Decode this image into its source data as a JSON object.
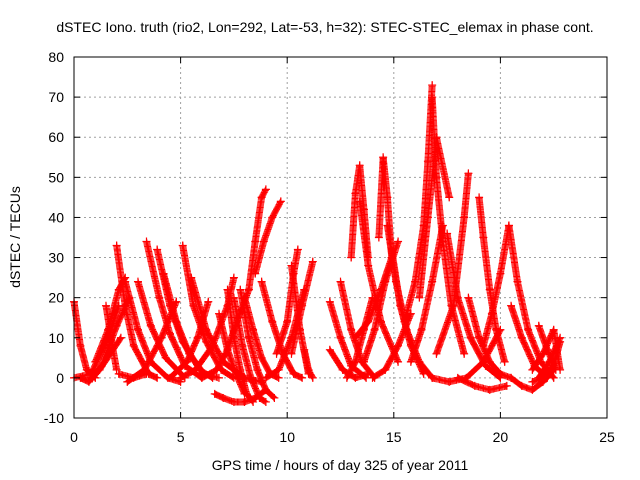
{
  "chart_data": {
    "type": "scatter",
    "title": "dSTEC Iono. truth (rio2, Lon=292, Lat=-53, h=32): STEC-STEC_elemax in phase cont.",
    "xlabel": "GPS time / hours of day 325 of year 2011",
    "ylabel": "dSTEC  / TECUs",
    "xlim": [
      0,
      25
    ],
    "ylim": [
      -10,
      80
    ],
    "x_ticks": [
      0,
      5,
      10,
      15,
      20,
      25
    ],
    "y_ticks": [
      -10,
      0,
      10,
      20,
      30,
      40,
      50,
      60,
      70,
      80
    ],
    "x_tick_labels": [
      "0",
      "5",
      "10",
      "15",
      "20",
      "25"
    ],
    "y_tick_labels": [
      "-10",
      "0",
      "10",
      "20",
      "30",
      "40",
      "50",
      "60",
      "70",
      "80"
    ],
    "grid": true,
    "legend": "none",
    "marker": "plus",
    "color": "#ff0000",
    "series": [
      {
        "x": [
          0.0,
          0.3,
          0.6,
          1.0
        ],
        "y": [
          19,
          8,
          2,
          0
        ]
      },
      {
        "x": [
          0.0,
          0.8,
          1.6,
          2.1
        ],
        "y": [
          0,
          1,
          10,
          18
        ]
      },
      {
        "x": [
          0.3,
          0.7,
          1.2,
          2.2
        ],
        "y": [
          0,
          -1,
          2,
          10
        ]
      },
      {
        "x": [
          0.8,
          1.3,
          2.0,
          2.6
        ],
        "y": [
          0,
          3,
          13,
          20
        ]
      },
      {
        "x": [
          1.0,
          1.6,
          2.1,
          2.4
        ],
        "y": [
          4,
          12,
          22,
          25
        ]
      },
      {
        "x": [
          1.5,
          1.8,
          2.0
        ],
        "y": [
          18,
          8,
          2
        ]
      },
      {
        "x": [
          2.0,
          2.4,
          2.8,
          3.5,
          3.9
        ],
        "y": [
          33,
          18,
          8,
          1,
          0
        ]
      },
      {
        "x": [
          2.4,
          3.0,
          3.6,
          4.4,
          5.0
        ],
        "y": [
          24,
          12,
          4,
          0,
          -1
        ]
      },
      {
        "x": [
          2.1,
          2.8,
          3.4
        ],
        "y": [
          1,
          0,
          1
        ]
      },
      {
        "x": [
          3.0,
          3.6,
          4.3,
          5.2
        ],
        "y": [
          24,
          13,
          5,
          0
        ]
      },
      {
        "x": [
          3.4,
          4.0,
          4.5,
          5.2,
          6.0
        ],
        "y": [
          34,
          20,
          11,
          3,
          0
        ]
      },
      {
        "x": [
          3.9,
          4.5,
          5.1,
          5.9,
          6.5
        ],
        "y": [
          32,
          18,
          9,
          2,
          0
        ]
      },
      {
        "x": [
          2.5,
          3.3,
          4.1,
          4.8
        ],
        "y": [
          -1,
          2,
          10,
          19
        ]
      },
      {
        "x": [
          4.2,
          4.8,
          5.4,
          6.1,
          6.8
        ],
        "y": [
          26,
          14,
          6,
          1,
          0
        ]
      },
      {
        "x": [
          5.1,
          5.6,
          6.2,
          6.9,
          7.5
        ],
        "y": [
          33,
          18,
          9,
          2,
          0
        ]
      },
      {
        "x": [
          5.5,
          6.2,
          7.0,
          8.0,
          8.8
        ],
        "y": [
          25,
          12,
          4,
          0,
          -1
        ]
      },
      {
        "x": [
          4.5,
          5.3,
          5.8,
          6.3
        ],
        "y": [
          0,
          4,
          10,
          19
        ]
      },
      {
        "x": [
          5.0,
          5.7,
          6.5,
          7.2,
          7.5
        ],
        "y": [
          0,
          2,
          8,
          18,
          25
        ]
      },
      {
        "x": [
          6.0,
          6.7,
          7.2,
          7.7,
          8.2
        ],
        "y": [
          0,
          2,
          7,
          15,
          22
        ]
      },
      {
        "x": [
          6.8,
          7.2,
          7.6,
          8.0
        ],
        "y": [
          16,
          7,
          1,
          -4
        ]
      },
      {
        "x": [
          7.2,
          7.5,
          7.8,
          8.1,
          8.4
        ],
        "y": [
          22,
          10,
          2,
          -4,
          -6
        ]
      },
      {
        "x": [
          7.5,
          7.9,
          8.3,
          8.7,
          9.0
        ],
        "y": [
          20,
          8,
          0,
          -5,
          -6
        ]
      },
      {
        "x": [
          7.8,
          8.2,
          8.6,
          9.0,
          9.4
        ],
        "y": [
          22,
          10,
          2,
          -3,
          -5
        ]
      },
      {
        "x": [
          6.6,
          7.0,
          7.5,
          8.0,
          8.5,
          9.0
        ],
        "y": [
          -4,
          -5,
          -6,
          -6,
          -5,
          -3
        ]
      },
      {
        "x": [
          8.0,
          8.4,
          8.8,
          9.2,
          9.6
        ],
        "y": [
          20,
          12,
          5,
          1,
          0
        ]
      },
      {
        "x": [
          8.2,
          8.5,
          8.8,
          9.0
        ],
        "y": [
          22,
          34,
          45,
          47
        ]
      },
      {
        "x": [
          8.5,
          8.9,
          9.3,
          9.7
        ],
        "y": [
          26,
          34,
          40,
          44
        ]
      },
      {
        "x": [
          8.8,
          9.3,
          9.8,
          10.3,
          10.7
        ],
        "y": [
          24,
          14,
          6,
          1,
          0
        ]
      },
      {
        "x": [
          9.0,
          9.6,
          10.2,
          10.8
        ],
        "y": [
          0,
          2,
          10,
          22
        ]
      },
      {
        "x": [
          9.5,
          10.0,
          10.3,
          10.5
        ],
        "y": [
          6,
          14,
          26,
          32
        ]
      },
      {
        "x": [
          10.2,
          10.6,
          11.0
        ],
        "y": [
          28,
          12,
          1
        ]
      },
      {
        "x": [
          10.2,
          10.7,
          11.2
        ],
        "y": [
          6,
          18,
          29
        ]
      },
      {
        "x": [
          10.8,
          11.0,
          11.2
        ],
        "y": [
          7,
          2,
          0
        ]
      },
      {
        "x": [
          12.0,
          12.5,
          13.0,
          13.7
        ],
        "y": [
          19,
          10,
          3,
          0
        ]
      },
      {
        "x": [
          12.0,
          12.6,
          13.2,
          13.8
        ],
        "y": [
          7,
          2,
          0,
          1
        ]
      },
      {
        "x": [
          12.5,
          13.0,
          13.5,
          14.1
        ],
        "y": [
          24,
          12,
          4,
          0
        ]
      },
      {
        "x": [
          12.8,
          13.2,
          13.6,
          14.0
        ],
        "y": [
          0,
          4,
          12,
          20
        ]
      },
      {
        "x": [
          13.0,
          13.2,
          13.4,
          13.6,
          13.8
        ],
        "y": [
          30,
          46,
          53,
          42,
          30
        ]
      },
      {
        "x": [
          13.4,
          13.8,
          14.4,
          15.2
        ],
        "y": [
          44,
          28,
          14,
          4
        ]
      },
      {
        "x": [
          13.2,
          13.8,
          14.4,
          14.9
        ],
        "y": [
          10,
          14,
          22,
          30
        ]
      },
      {
        "x": [
          13.6,
          14.1,
          14.6,
          15.2
        ],
        "y": [
          4,
          12,
          24,
          34
        ]
      },
      {
        "x": [
          14.3,
          14.5,
          14.7,
          14.9
        ],
        "y": [
          35,
          55,
          45,
          30
        ]
      },
      {
        "x": [
          14.7,
          15.1,
          15.6,
          16.2,
          16.8
        ],
        "y": [
          38,
          24,
          12,
          4,
          0
        ]
      },
      {
        "x": [
          14.9,
          15.3,
          15.8,
          16.4
        ],
        "y": [
          32,
          18,
          8,
          1
        ]
      },
      {
        "x": [
          14.0,
          14.6,
          15.2,
          15.8
        ],
        "y": [
          0,
          2,
          8,
          16
        ]
      },
      {
        "x": [
          15.5,
          16.0,
          16.4,
          16.6,
          16.8
        ],
        "y": [
          14,
          24,
          38,
          54,
          73
        ]
      },
      {
        "x": [
          16.8,
          17.0,
          17.3,
          17.7,
          18.3
        ],
        "y": [
          70,
          50,
          34,
          18,
          6
        ]
      },
      {
        "x": [
          16.2,
          16.6,
          17.0,
          17.6
        ],
        "y": [
          20,
          40,
          60,
          45
        ]
      },
      {
        "x": [
          15.8,
          16.3,
          16.8,
          17.3
        ],
        "y": [
          4,
          12,
          24,
          38
        ]
      },
      {
        "x": [
          17.0,
          17.8,
          18.3,
          18.5
        ],
        "y": [
          6,
          18,
          40,
          51
        ]
      },
      {
        "x": [
          16.8,
          17.6,
          18.4,
          19.2,
          20.0
        ],
        "y": [
          0,
          -1,
          0,
          4,
          12
        ]
      },
      {
        "x": [
          17.5,
          18.0,
          18.6,
          19.3,
          20.0
        ],
        "y": [
          36,
          20,
          10,
          3,
          0
        ]
      },
      {
        "x": [
          18.5,
          19.0,
          19.5,
          20.0,
          20.5
        ],
        "y": [
          20,
          10,
          4,
          1,
          0
        ]
      },
      {
        "x": [
          18.0,
          18.8,
          19.5,
          20.3
        ],
        "y": [
          0,
          -2,
          -3,
          -2
        ]
      },
      {
        "x": [
          19.0,
          19.2,
          19.5,
          19.8,
          20.2
        ],
        "y": [
          45,
          35,
          22,
          12,
          4
        ]
      },
      {
        "x": [
          19.2,
          19.6,
          20.0,
          20.4
        ],
        "y": [
          8,
          16,
          26,
          38
        ]
      },
      {
        "x": [
          20.4,
          20.8,
          21.3,
          21.9,
          22.5
        ],
        "y": [
          38,
          24,
          12,
          4,
          0
        ]
      },
      {
        "x": [
          20.5,
          21.0,
          21.5,
          22.0,
          22.5
        ],
        "y": [
          0,
          -2,
          -3,
          -1,
          2
        ]
      },
      {
        "x": [
          20.5,
          21.0,
          21.6,
          22.2
        ],
        "y": [
          18,
          10,
          3,
          0
        ]
      },
      {
        "x": [
          21.5,
          22.0,
          22.5,
          22.8
        ],
        "y": [
          2,
          6,
          12,
          2
        ]
      },
      {
        "x": [
          21.8,
          22.2,
          22.6
        ],
        "y": [
          13,
          7,
          2
        ]
      },
      {
        "x": [
          21.8,
          22.3,
          22.8
        ],
        "y": [
          0,
          4,
          10
        ]
      },
      {
        "x": [
          21.5,
          22.0,
          22.5,
          22.8
        ],
        "y": [
          -1,
          0,
          3,
          9
        ]
      }
    ]
  }
}
